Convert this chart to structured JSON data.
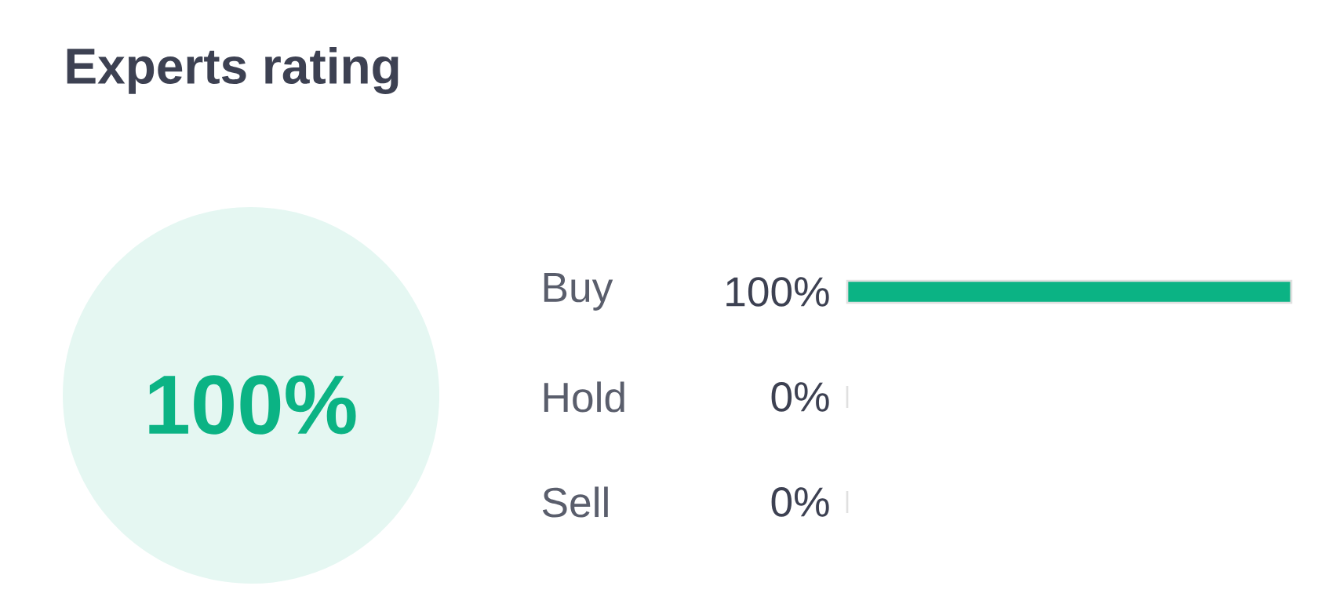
{
  "chart_data": {
    "type": "bar",
    "orientation": "horizontal",
    "title": "Experts rating",
    "categories": [
      "Buy",
      "Hold",
      "Sell"
    ],
    "values": [
      100,
      0,
      0
    ],
    "value_labels": [
      "100%",
      "0%",
      "0%"
    ],
    "color": "#0bb384",
    "tick_labels": false,
    "annotations": [
      "100%"
    ]
  }
}
